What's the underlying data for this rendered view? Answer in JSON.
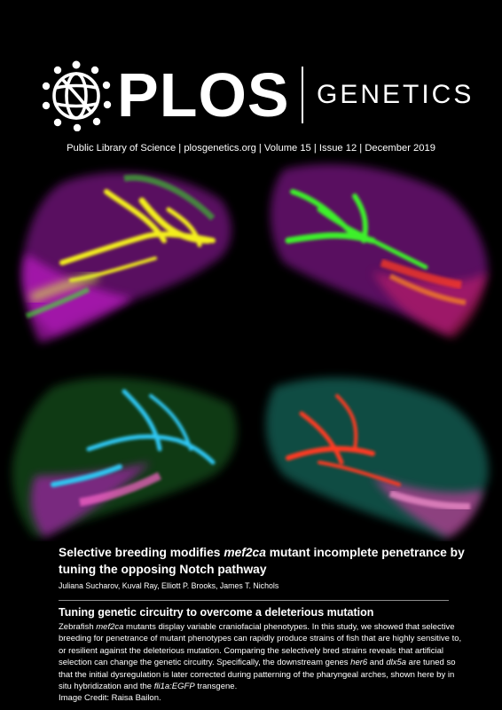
{
  "masthead": {
    "publisher_wordmark": "PLOS",
    "journal_name": "GENETICS",
    "logo_icon": "plos-globe-logo-icon"
  },
  "issue_line": "Public Library of Science | plosgenetics.org | Volume 15 | Issue 12 | December 2019",
  "cover_image": {
    "description_icon": "zebrafish-craniofacial-micrograph",
    "colors": [
      "#d81ee0",
      "#f2ef1c",
      "#3ef02a",
      "#2fc6f2",
      "#ff3b24",
      "#29d9c8"
    ]
  },
  "article": {
    "title_part1": "Selective breeding modifies ",
    "title_gene": "mef2ca",
    "title_part2": " mutant incomplete penetrance by tuning the opposing Notch pathway",
    "authors": "Juliana Sucharov, Kuval Ray, Elliott P. Brooks, James T. Nichols"
  },
  "summary": {
    "title": "Tuning genetic circuitry to overcome a deleterious mutation",
    "s1": "Zebrafish ",
    "g1": "mef2ca",
    "s2": " mutants display variable craniofacial phenotypes. In this study, we showed that selective breeding for penetrance of mutant phenotypes can rapidly produce strains of fish that are highly sensitive to, or resilient against the deleterious mutation. Comparing the selectively bred strains reveals that artificial selection can change the genetic circuitry. Specifically, the downstream genes ",
    "g2": "her6",
    "s3": " and ",
    "g3": "dlx5a",
    "s4": " are tuned so that the initial dysregulation is later corrected during patterning of the pharyngeal arches, shown here by in situ hybridization and the ",
    "g4": "fli1a:EGFP",
    "s5": " transgene.",
    "credit": "Image Credit: Raisa Bailon."
  }
}
